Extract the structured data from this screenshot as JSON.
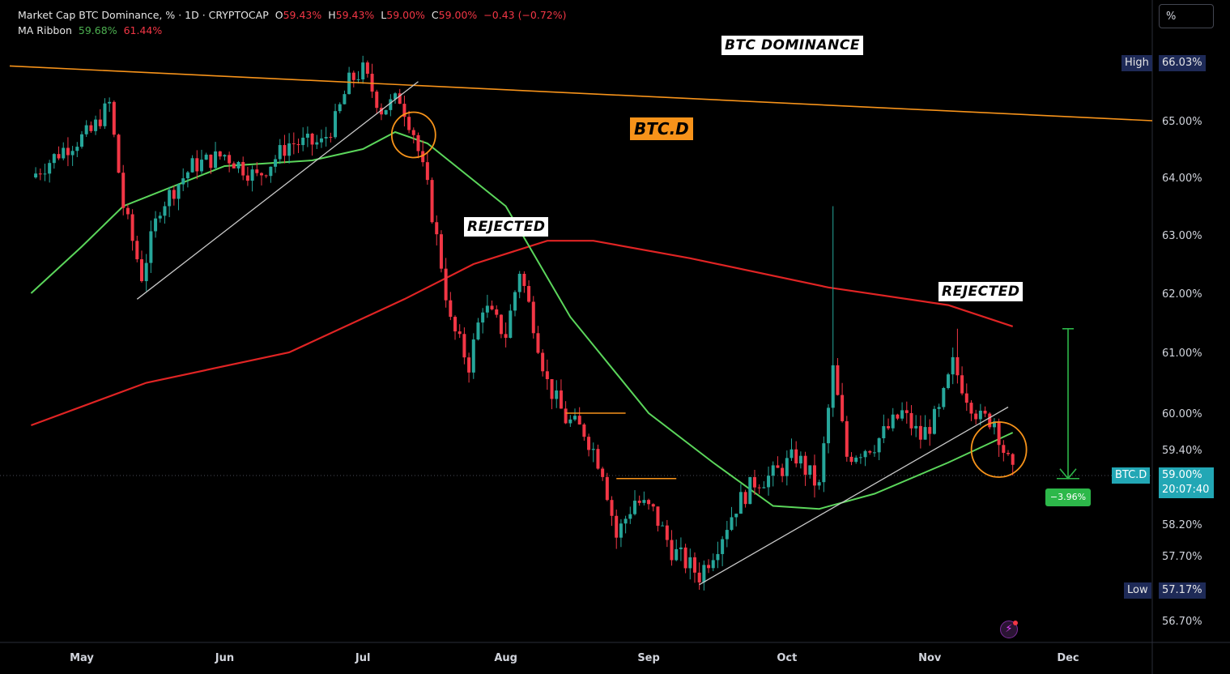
{
  "header": {
    "title": "Market Cap BTC Dominance, % · 1D · CRYPTOCAP",
    "open_label": "O",
    "open": "59.43%",
    "high_label": "H",
    "high": "59.43%",
    "low_label": "L",
    "low": "59.00%",
    "close_label": "C",
    "close": "59.00%",
    "change": "−0.43 (−0.72%)",
    "ma_label": "MA Ribbon",
    "ma1": "59.68%",
    "ma2": "61.44%"
  },
  "toolbar": {
    "unit_button": "%"
  },
  "annotations": {
    "dominance": "BTC DOMINANCE",
    "ticker": "BTC.D",
    "rejected_1": "REJECTED",
    "rejected_2": "REJECTED"
  },
  "price_scale": {
    "high_label": "High",
    "high_value": "66.03%",
    "low_label": "Low",
    "low_value": "57.17%",
    "symbol_label": "BTC.D",
    "last_value": "59.00%",
    "countdown": "20:07:40",
    "change_badge": "−3.96%"
  },
  "colors": {
    "up": "#26a69a",
    "down": "#f23645",
    "ma_fast": "#5bd65b",
    "ma_slow": "#e02424",
    "trendline": "#f7931a",
    "support": "#c8c8c8",
    "badge": "#2db84a"
  },
  "chart_data": {
    "type": "candlestick",
    "title": "Market Cap BTC Dominance, % · 1D · CRYPTOCAP",
    "x_labels": [
      "May",
      "Jun",
      "Jul",
      "Aug",
      "Sep",
      "Oct",
      "Nov",
      "Dec"
    ],
    "y_ticks": [
      66.03,
      65.0,
      64.0,
      63.0,
      62.0,
      61.0,
      60.0,
      59.4,
      59.0,
      58.2,
      57.7,
      57.17,
      56.7
    ],
    "series": [
      {
        "name": "BTC.D close (approx.)",
        "points": [
          [
            "Apr 20",
            64.0
          ],
          [
            "Apr 27",
            64.5
          ],
          [
            "May 3",
            64.8
          ],
          [
            "May 7",
            65.3
          ],
          [
            "May 10",
            63.5
          ],
          [
            "May 14",
            62.3
          ],
          [
            "May 18",
            63.5
          ],
          [
            "May 25",
            64.2
          ],
          [
            "Jun 1",
            64.4
          ],
          [
            "Jun 8",
            64.0
          ],
          [
            "Jun 15",
            64.6
          ],
          [
            "Jun 22",
            64.6
          ],
          [
            "Jun 25",
            65.0
          ],
          [
            "Jun 28",
            65.7
          ],
          [
            "Jul 1",
            65.9
          ],
          [
            "Jul 5",
            65.2
          ],
          [
            "Jul 9",
            65.4
          ],
          [
            "Jul 12",
            64.8
          ],
          [
            "Jul 15",
            63.8
          ],
          [
            "Jul 18",
            62.5
          ],
          [
            "Jul 20",
            61.5
          ],
          [
            "Jul 24",
            60.8
          ],
          [
            "Jul 27",
            61.8
          ],
          [
            "Aug 1",
            61.3
          ],
          [
            "Aug 4",
            62.4
          ],
          [
            "Aug 7",
            61.5
          ],
          [
            "Aug 10",
            60.5
          ],
          [
            "Aug 14",
            59.9
          ],
          [
            "Aug 18",
            59.7
          ],
          [
            "Aug 22",
            59.1
          ],
          [
            "Aug 25",
            58.0
          ],
          [
            "Aug 29",
            58.6
          ],
          [
            "Sep 2",
            58.4
          ],
          [
            "Sep 6",
            57.8
          ],
          [
            "Sep 12",
            57.4
          ],
          [
            "Sep 16",
            57.9
          ],
          [
            "Sep 20",
            58.5
          ],
          [
            "Sep 24",
            58.9
          ],
          [
            "Sep 28",
            59.0
          ],
          [
            "Oct 3",
            59.3
          ],
          [
            "Oct 8",
            58.8
          ],
          [
            "Oct 11",
            60.7
          ],
          [
            "Oct 14",
            59.3
          ],
          [
            "Oct 20",
            59.5
          ],
          [
            "Oct 26",
            60.0
          ],
          [
            "Oct 30",
            59.6
          ],
          [
            "Nov 3",
            60.0
          ],
          [
            "Nov 6",
            60.8
          ],
          [
            "Nov 9",
            60.3
          ],
          [
            "Nov 12",
            59.9
          ],
          [
            "Nov 15",
            59.9
          ],
          [
            "Nov 17",
            59.4
          ],
          [
            "Nov 19",
            59.0
          ]
        ]
      },
      {
        "name": "MA fast (green)",
        "points": [
          [
            "Apr 20",
            62.0
          ],
          [
            "May 1",
            62.8
          ],
          [
            "May 10",
            63.5
          ],
          [
            "Jun 1",
            64.2
          ],
          [
            "Jun 20",
            64.3
          ],
          [
            "Jul 1",
            64.5
          ],
          [
            "Jul 8",
            64.8
          ],
          [
            "Jul 15",
            64.6
          ],
          [
            "Aug 1",
            63.5
          ],
          [
            "Aug 15",
            61.6
          ],
          [
            "Sep 1",
            60.0
          ],
          [
            "Sep 15",
            59.2
          ],
          [
            "Sep 28",
            58.5
          ],
          [
            "Oct 8",
            58.45
          ],
          [
            "Oct 20",
            58.7
          ],
          [
            "Nov 5",
            59.2
          ],
          [
            "Nov 19",
            59.68
          ]
        ]
      },
      {
        "name": "MA slow (red)",
        "points": [
          [
            "Apr 20",
            59.8
          ],
          [
            "May 15",
            60.5
          ],
          [
            "Jun 15",
            61.0
          ],
          [
            "Jul 10",
            61.9
          ],
          [
            "Jul 25",
            62.5
          ],
          [
            "Aug 10",
            62.9
          ],
          [
            "Aug 20",
            62.9
          ],
          [
            "Sep 10",
            62.6
          ],
          [
            "Oct 10",
            62.1
          ],
          [
            "Nov 5",
            61.8
          ],
          [
            "Nov 19",
            61.44
          ]
        ]
      }
    ],
    "ylim": [
      56.5,
      66.5
    ],
    "grid": false,
    "legend": "none"
  }
}
